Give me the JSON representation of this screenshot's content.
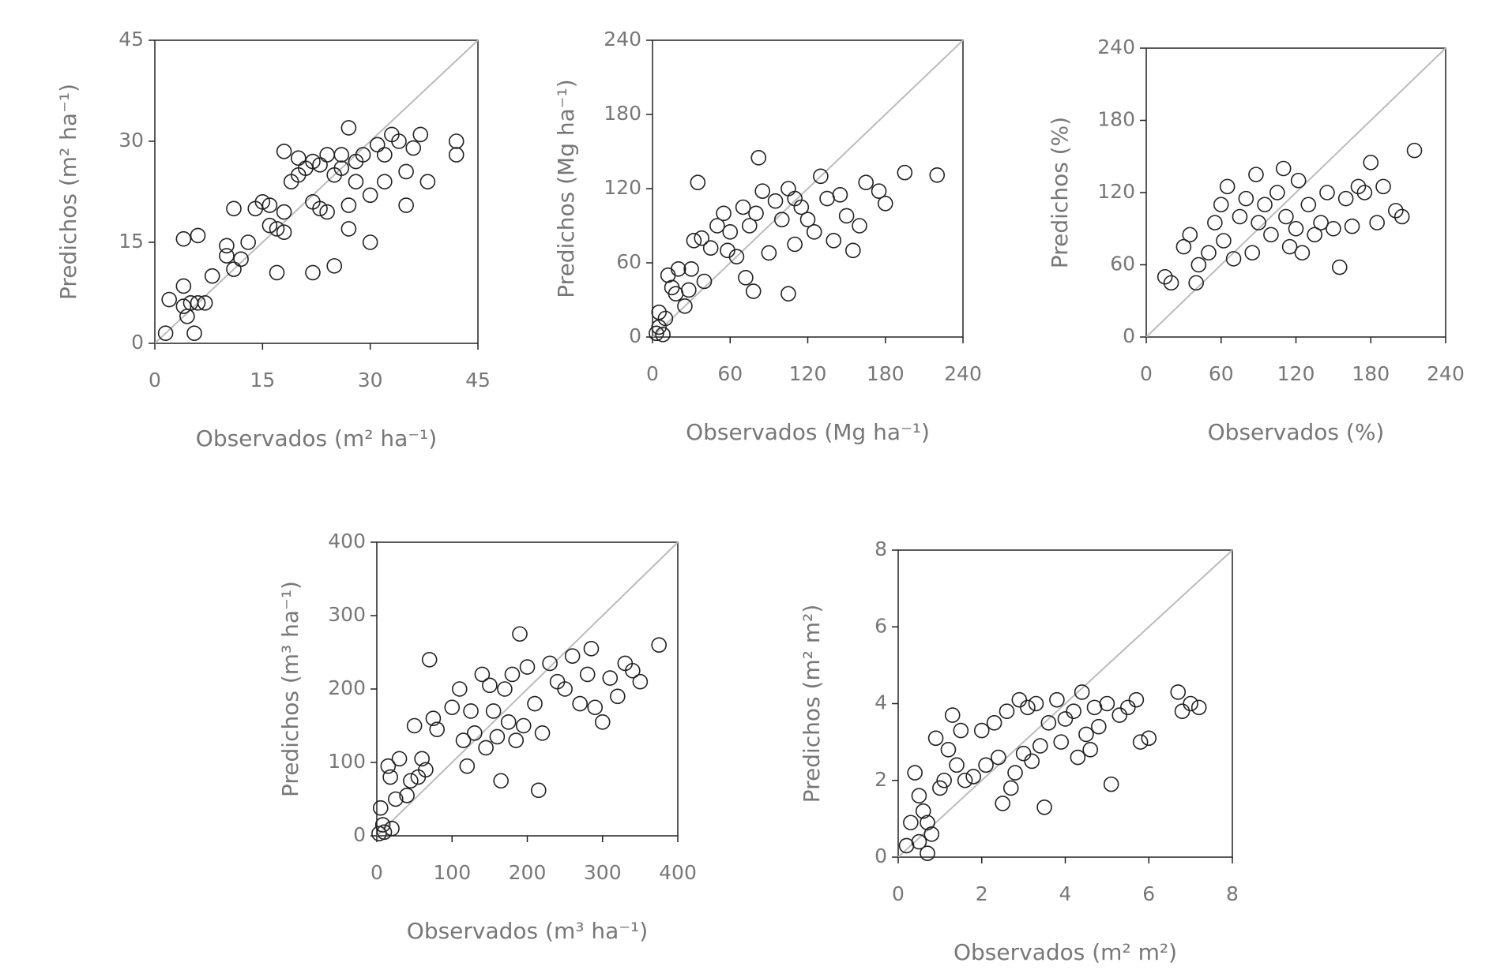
{
  "chart_data": [
    {
      "type": "scatter",
      "xlabel": "Observados (m² ha⁻¹)",
      "ylabel": "Predichos (m² ha⁻¹)",
      "xlim": [
        0,
        45
      ],
      "ylim": [
        0,
        45
      ],
      "xticks": [
        0,
        15,
        30,
        45
      ],
      "yticks": [
        0,
        15,
        30,
        45
      ],
      "color": "#222222",
      "diagonal": true,
      "x": [
        1.5,
        2,
        4,
        4,
        4,
        4.5,
        5,
        5.5,
        6,
        6,
        7,
        8,
        10,
        10,
        11,
        11,
        12,
        13,
        14,
        15,
        16,
        16,
        17,
        17,
        18,
        18,
        18,
        19,
        20,
        20,
        21,
        22,
        22,
        22,
        23,
        23,
        24,
        24,
        25,
        25,
        26,
        26,
        27,
        27,
        27,
        28,
        28,
        29,
        30,
        30,
        31,
        32,
        32,
        33,
        34,
        35,
        35,
        36,
        37,
        38,
        42,
        42
      ],
      "values": [
        1.5,
        6.5,
        15.5,
        8.5,
        5.5,
        4,
        6,
        1.5,
        16,
        6,
        6,
        10,
        14.5,
        13,
        11,
        20,
        12.5,
        15,
        20,
        21,
        17.5,
        20.5,
        10.5,
        17,
        16.5,
        19.5,
        28.5,
        24,
        25,
        27.5,
        26,
        10.5,
        21,
        27,
        20,
        26.5,
        19.5,
        28,
        11.5,
        25,
        26,
        28,
        32,
        17,
        20.5,
        24,
        27,
        28,
        15,
        22,
        29.5,
        24,
        28,
        31,
        30,
        25.5,
        20.5,
        29,
        31,
        24,
        30,
        28
      ]
    },
    {
      "type": "scatter",
      "xlabel": "Observados (Mg ha⁻¹)",
      "ylabel": "Predichos (Mg ha⁻¹)",
      "xlim": [
        0,
        240
      ],
      "ylim": [
        0,
        240
      ],
      "xticks": [
        0,
        60,
        120,
        180,
        240
      ],
      "yticks": [
        0,
        60,
        120,
        180,
        240
      ],
      "color": "#222222",
      "diagonal": true,
      "x": [
        3,
        5,
        5,
        8,
        10,
        12,
        15,
        18,
        20,
        25,
        28,
        30,
        32,
        35,
        38,
        40,
        45,
        50,
        55,
        58,
        60,
        65,
        70,
        72,
        75,
        78,
        80,
        82,
        85,
        90,
        95,
        100,
        105,
        105,
        110,
        110,
        115,
        120,
        125,
        130,
        135,
        140,
        145,
        150,
        155,
        160,
        165,
        175,
        180,
        195,
        220
      ],
      "values": [
        3,
        8,
        20,
        2,
        15,
        50,
        40,
        35,
        55,
        25,
        38,
        55,
        78,
        125,
        80,
        45,
        72,
        90,
        100,
        70,
        85,
        65,
        105,
        48,
        90,
        37,
        100,
        145,
        118,
        68,
        110,
        95,
        35,
        120,
        112,
        75,
        105,
        95,
        85,
        130,
        112,
        78,
        115,
        98,
        70,
        90,
        125,
        118,
        108,
        133,
        131
      ]
    },
    {
      "type": "scatter",
      "xlabel": "Observados (%)",
      "ylabel": "Predichos (%)",
      "xlim": [
        0,
        240
      ],
      "ylim": [
        0,
        240
      ],
      "xticks": [
        0,
        60,
        120,
        180,
        240
      ],
      "yticks": [
        0,
        60,
        120,
        180,
        240
      ],
      "color": "#222222",
      "diagonal": true,
      "x": [
        15,
        20,
        30,
        35,
        40,
        42,
        50,
        55,
        60,
        62,
        65,
        70,
        75,
        80,
        85,
        88,
        90,
        95,
        100,
        105,
        110,
        112,
        115,
        120,
        122,
        125,
        130,
        135,
        140,
        145,
        150,
        155,
        160,
        165,
        170,
        175,
        180,
        185,
        190,
        200,
        205,
        215
      ],
      "values": [
        50,
        45,
        75,
        85,
        45,
        60,
        70,
        95,
        110,
        80,
        125,
        65,
        100,
        115,
        70,
        135,
        95,
        110,
        85,
        120,
        140,
        100,
        75,
        90,
        130,
        70,
        110,
        85,
        95,
        120,
        90,
        58,
        115,
        92,
        125,
        120,
        145,
        95,
        125,
        105,
        100,
        155
      ]
    },
    {
      "type": "scatter",
      "xlabel": "Observados (m³ ha⁻¹)",
      "ylabel": "Predichos (m³ ha⁻¹)",
      "xlim": [
        0,
        400
      ],
      "ylim": [
        0,
        400
      ],
      "xticks": [
        0,
        100,
        200,
        300,
        400
      ],
      "yticks": [
        0,
        100,
        200,
        300,
        400
      ],
      "color": "#222222",
      "diagonal": true,
      "x": [
        3,
        5,
        8,
        10,
        15,
        18,
        20,
        25,
        30,
        40,
        45,
        50,
        55,
        60,
        65,
        70,
        75,
        80,
        100,
        110,
        115,
        120,
        125,
        130,
        140,
        145,
        150,
        155,
        160,
        165,
        170,
        175,
        180,
        185,
        190,
        195,
        200,
        210,
        215,
        220,
        230,
        240,
        250,
        260,
        270,
        280,
        285,
        290,
        300,
        310,
        320,
        330,
        340,
        350,
        375
      ],
      "values": [
        3,
        38,
        15,
        5,
        95,
        80,
        10,
        50,
        105,
        55,
        75,
        150,
        80,
        105,
        90,
        240,
        160,
        145,
        175,
        200,
        130,
        95,
        170,
        140,
        220,
        120,
        205,
        170,
        135,
        75,
        200,
        155,
        220,
        130,
        275,
        150,
        230,
        180,
        62,
        140,
        235,
        210,
        200,
        245,
        180,
        220,
        255,
        175,
        155,
        215,
        190,
        235,
        225,
        210,
        260
      ]
    },
    {
      "type": "scatter",
      "xlabel": "Observados (m² m²)",
      "ylabel": "Predichos (m² m²)",
      "xlim": [
        0,
        8
      ],
      "ylim": [
        0,
        8
      ],
      "xticks": [
        0,
        2,
        4,
        6,
        8
      ],
      "yticks": [
        0,
        2,
        4,
        6,
        8
      ],
      "color": "#222222",
      "diagonal": true,
      "x": [
        0.2,
        0.3,
        0.4,
        0.5,
        0.5,
        0.6,
        0.7,
        0.7,
        0.8,
        0.9,
        1.0,
        1.1,
        1.2,
        1.3,
        1.4,
        1.5,
        1.6,
        1.8,
        2.0,
        2.1,
        2.3,
        2.4,
        2.5,
        2.6,
        2.7,
        2.8,
        2.9,
        3.0,
        3.1,
        3.2,
        3.3,
        3.4,
        3.5,
        3.6,
        3.8,
        3.9,
        4.0,
        4.2,
        4.3,
        4.4,
        4.5,
        4.6,
        4.7,
        4.8,
        5.0,
        5.1,
        5.3,
        5.5,
        5.7,
        5.8,
        6.0,
        6.7,
        6.8,
        7.0,
        7.2
      ],
      "values": [
        0.3,
        0.9,
        2.2,
        1.6,
        0.4,
        1.2,
        0.9,
        0.1,
        0.6,
        3.1,
        1.8,
        2.0,
        2.8,
        3.7,
        2.4,
        3.3,
        2.0,
        2.1,
        3.3,
        2.4,
        3.5,
        2.6,
        1.4,
        3.8,
        1.8,
        2.2,
        4.1,
        2.7,
        3.9,
        2.5,
        4.0,
        2.9,
        1.3,
        3.5,
        4.1,
        3.0,
        3.6,
        3.8,
        2.6,
        4.3,
        3.2,
        2.8,
        3.9,
        3.4,
        4.0,
        1.9,
        3.7,
        3.9,
        4.1,
        3.0,
        3.1,
        4.3,
        3.8,
        4.0,
        3.9
      ]
    }
  ]
}
